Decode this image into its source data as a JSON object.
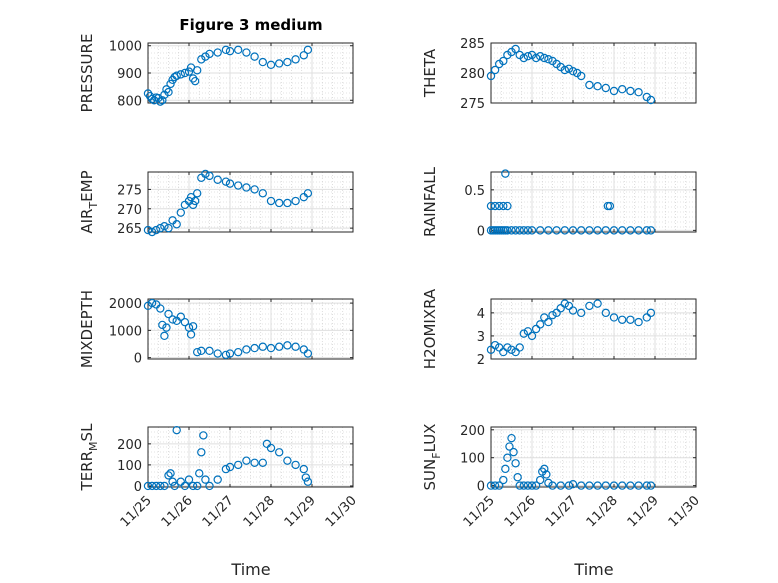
{
  "figure": {
    "title": "Figure 3 medium",
    "xlabel": "Time"
  },
  "colors": {
    "marker": "#0072BD",
    "axis": "#262626",
    "grid": "#DFDFDF",
    "minor_grid": "#C8C8C8"
  },
  "chart_data": [
    {
      "type": "scatter",
      "ylabel": "PRESSURE",
      "ylabel_sub": null,
      "xticks": [
        "11/25",
        "11/26",
        "11/27",
        "11/28",
        "11/29",
        "11/30"
      ],
      "yticks": [
        800,
        900,
        1000
      ],
      "ylim": [
        790,
        1010
      ],
      "x_days": [
        0.0,
        0.05,
        0.1,
        0.15,
        0.2,
        0.25,
        0.3,
        0.35,
        0.4,
        0.45,
        0.5,
        0.55,
        0.6,
        0.65,
        0.7,
        0.8,
        0.9,
        1.0,
        1.05,
        1.1,
        1.15,
        1.2,
        1.3,
        1.4,
        1.5,
        1.7,
        1.9,
        2.0,
        2.2,
        2.4,
        2.6,
        2.8,
        3.0,
        3.2,
        3.4,
        3.6,
        3.8,
        3.9
      ],
      "y": [
        825,
        815,
        805,
        800,
        810,
        808,
        795,
        800,
        820,
        840,
        830,
        860,
        875,
        885,
        890,
        895,
        900,
        905,
        920,
        880,
        870,
        910,
        950,
        960,
        970,
        975,
        985,
        980,
        985,
        975,
        960,
        940,
        930,
        935,
        940,
        950,
        965,
        985
      ]
    },
    {
      "type": "scatter",
      "ylabel": "THETA",
      "ylabel_sub": null,
      "xticks": [
        "11/25",
        "11/26",
        "11/27",
        "11/28",
        "11/29",
        "11/30"
      ],
      "yticks": [
        275,
        280,
        285
      ],
      "ylim": [
        275,
        285
      ],
      "x_days": [
        0.0,
        0.1,
        0.2,
        0.3,
        0.4,
        0.5,
        0.6,
        0.7,
        0.8,
        0.9,
        1.0,
        1.1,
        1.2,
        1.3,
        1.4,
        1.5,
        1.6,
        1.7,
        1.8,
        1.9,
        2.0,
        2.1,
        2.2,
        2.4,
        2.6,
        2.8,
        3.0,
        3.2,
        3.4,
        3.6,
        3.8,
        3.9
      ],
      "y": [
        279.5,
        280.5,
        281.5,
        282,
        283,
        283.5,
        284,
        283,
        282.5,
        282.8,
        283,
        282.5,
        282.8,
        282.5,
        282.3,
        282,
        281.5,
        281,
        280.5,
        280.7,
        280.3,
        280,
        279.5,
        278,
        277.8,
        277.5,
        277,
        277.3,
        277,
        276.8,
        276,
        275.5
      ]
    },
    {
      "type": "scatter",
      "ylabel": "AIR",
      "ylabel_sub": "T",
      "ylabel_rest": "EMP",
      "xticks": [
        "11/25",
        "11/26",
        "11/27",
        "11/28",
        "11/29",
        "11/30"
      ],
      "yticks": [
        265,
        270,
        275
      ],
      "ylim": [
        264,
        279.5
      ],
      "x_days": [
        0.0,
        0.1,
        0.2,
        0.3,
        0.4,
        0.5,
        0.6,
        0.7,
        0.8,
        0.9,
        1.0,
        1.05,
        1.1,
        1.15,
        1.2,
        1.3,
        1.4,
        1.5,
        1.7,
        1.9,
        2.0,
        2.2,
        2.4,
        2.6,
        2.8,
        3.0,
        3.2,
        3.4,
        3.6,
        3.8,
        3.9
      ],
      "y": [
        264.5,
        264,
        264.5,
        265,
        265.5,
        265,
        267,
        266,
        269,
        271,
        272,
        273,
        271,
        272,
        274,
        278,
        279,
        278.5,
        277.5,
        277,
        276.5,
        276,
        275.5,
        275,
        274,
        272,
        271.5,
        271.5,
        272,
        273,
        274
      ]
    },
    {
      "type": "scatter",
      "ylabel": "RAINFALL",
      "ylabel_sub": null,
      "xticks": [
        "11/25",
        "11/26",
        "11/27",
        "11/28",
        "11/29",
        "11/30"
      ],
      "yticks": [
        0,
        0.5
      ],
      "ylim": [
        -0.02,
        0.72
      ],
      "x_days": [
        0.0,
        0.05,
        0.1,
        0.15,
        0.2,
        0.25,
        0.3,
        0.35,
        0.4,
        0.5,
        0.6,
        0.7,
        0.8,
        0.9,
        1.0,
        1.2,
        1.4,
        1.6,
        1.8,
        2.0,
        2.2,
        2.4,
        2.6,
        2.8,
        3.0,
        3.2,
        3.4,
        3.6,
        3.8,
        3.9,
        0.0,
        0.1,
        0.2,
        0.3,
        0.35,
        0.4,
        2.85,
        2.9
      ],
      "y": [
        0,
        0,
        0,
        0,
        0,
        0,
        0,
        0,
        0,
        0,
        0,
        0,
        0,
        0,
        0,
        0,
        0,
        0,
        0,
        0,
        0,
        0,
        0,
        0,
        0,
        0,
        0,
        0,
        0,
        0,
        0.3,
        0.3,
        0.3,
        0.3,
        0.7,
        0.3,
        0.3,
        0.3
      ]
    },
    {
      "type": "scatter",
      "ylabel": "MIXDEPTH",
      "ylabel_sub": null,
      "xticks": [
        "11/25",
        "11/26",
        "11/27",
        "11/28",
        "11/29",
        "11/30"
      ],
      "yticks": [
        0,
        1000,
        2000
      ],
      "ylim": [
        -50,
        2150
      ],
      "x_days": [
        0.0,
        0.1,
        0.2,
        0.3,
        0.35,
        0.4,
        0.45,
        0.5,
        0.6,
        0.7,
        0.8,
        0.9,
        1.0,
        1.05,
        1.1,
        1.2,
        1.3,
        1.5,
        1.7,
        1.9,
        2.0,
        2.2,
        2.4,
        2.6,
        2.8,
        3.0,
        3.2,
        3.4,
        3.6,
        3.8,
        3.9
      ],
      "y": [
        1900,
        2000,
        1950,
        1800,
        1200,
        800,
        1100,
        1600,
        1400,
        1350,
        1500,
        1300,
        1100,
        850,
        1150,
        200,
        250,
        250,
        150,
        100,
        150,
        200,
        300,
        350,
        400,
        350,
        400,
        450,
        400,
        300,
        150
      ]
    },
    {
      "type": "scatter",
      "ylabel": "H2OMIXRA",
      "ylabel_sub": null,
      "xticks": [
        "11/25",
        "11/26",
        "11/27",
        "11/28",
        "11/29",
        "11/30"
      ],
      "yticks": [
        2,
        3,
        4
      ],
      "ylim": [
        2,
        4.6
      ],
      "x_days": [
        0.0,
        0.1,
        0.2,
        0.3,
        0.4,
        0.5,
        0.6,
        0.7,
        0.8,
        0.9,
        1.0,
        1.1,
        1.2,
        1.3,
        1.4,
        1.5,
        1.6,
        1.7,
        1.8,
        1.9,
        2.0,
        2.2,
        2.4,
        2.6,
        2.8,
        3.0,
        3.2,
        3.4,
        3.6,
        3.8,
        3.9
      ],
      "y": [
        2.4,
        2.6,
        2.5,
        2.3,
        2.5,
        2.4,
        2.3,
        2.5,
        3.1,
        3.2,
        3.0,
        3.3,
        3.5,
        3.8,
        3.6,
        3.9,
        4.0,
        4.2,
        4.4,
        4.3,
        4.1,
        4.0,
        4.3,
        4.4,
        4.0,
        3.8,
        3.7,
        3.7,
        3.6,
        3.8,
        4.0
      ]
    },
    {
      "type": "scatter",
      "ylabel": "TERR",
      "ylabel_sub": "M",
      "ylabel_rest": "SL",
      "xticks": [
        "11/25",
        "11/26",
        "11/27",
        "11/28",
        "11/29",
        "11/30"
      ],
      "yticks": [
        0,
        100,
        200
      ],
      "ylim": [
        -5,
        280
      ],
      "x_days": [
        0.0,
        0.1,
        0.2,
        0.3,
        0.4,
        0.5,
        0.55,
        0.6,
        0.65,
        0.7,
        0.8,
        0.9,
        1.0,
        1.1,
        1.2,
        1.25,
        1.3,
        1.35,
        1.4,
        1.5,
        1.7,
        1.9,
        2.0,
        2.2,
        2.4,
        2.6,
        2.8,
        2.9,
        3.0,
        3.2,
        3.4,
        3.6,
        3.8,
        3.85,
        3.9
      ],
      "y": [
        0,
        0,
        0,
        0,
        0,
        50,
        60,
        20,
        0,
        265,
        20,
        0,
        30,
        0,
        0,
        60,
        160,
        240,
        30,
        0,
        30,
        80,
        90,
        100,
        120,
        110,
        110,
        200,
        180,
        160,
        120,
        100,
        80,
        40,
        20
      ]
    },
    {
      "type": "scatter",
      "ylabel": "SUN",
      "ylabel_sub": "F",
      "ylabel_rest": "LUX",
      "xticks": [
        "11/25",
        "11/26",
        "11/27",
        "11/28",
        "11/29",
        "11/30"
      ],
      "yticks": [
        0,
        100,
        200
      ],
      "ylim": [
        -5,
        210
      ],
      "x_days": [
        0.0,
        0.1,
        0.2,
        0.3,
        0.35,
        0.4,
        0.45,
        0.5,
        0.55,
        0.6,
        0.65,
        0.7,
        0.8,
        0.9,
        1.0,
        1.1,
        1.2,
        1.25,
        1.3,
        1.35,
        1.4,
        1.5,
        1.7,
        1.9,
        2.0,
        2.2,
        2.4,
        2.6,
        2.8,
        3.0,
        3.2,
        3.4,
        3.6,
        3.8,
        3.9
      ],
      "y": [
        0,
        0,
        0,
        20,
        60,
        100,
        140,
        170,
        120,
        80,
        30,
        0,
        0,
        0,
        0,
        0,
        20,
        50,
        60,
        40,
        10,
        0,
        0,
        0,
        5,
        0,
        0,
        0,
        0,
        0,
        0,
        0,
        0,
        0,
        0
      ]
    }
  ]
}
